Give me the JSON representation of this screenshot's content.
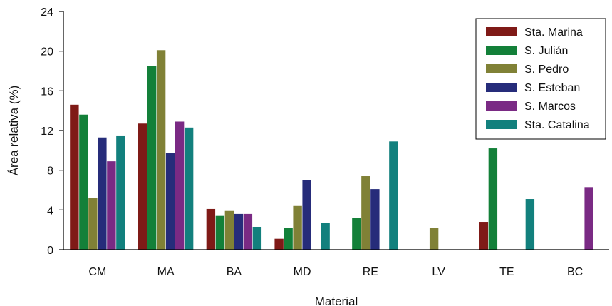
{
  "chart_data": {
    "type": "bar",
    "title": "",
    "xlabel": "Material",
    "ylabel": "Área relativa (%)",
    "ylim": [
      0,
      24
    ],
    "yticks": [
      "0",
      "4",
      "8",
      "12",
      "16",
      "20",
      "24"
    ],
    "categories": [
      "CM",
      "MA",
      "BA",
      "MD",
      "RE",
      "LV",
      "TE",
      "BC"
    ],
    "legend_position": "top-right",
    "series": [
      {
        "name": "Sta. Marina",
        "color": "#7f1a17",
        "values": [
          14.6,
          12.7,
          4.1,
          1.1,
          0,
          0,
          2.8,
          0
        ]
      },
      {
        "name": "S. Julián",
        "color": "#138039",
        "values": [
          13.6,
          18.5,
          3.4,
          2.2,
          3.2,
          0,
          10.2,
          0
        ]
      },
      {
        "name": "S. Pedro",
        "color": "#808136",
        "values": [
          5.2,
          20.1,
          3.9,
          4.4,
          7.4,
          2.2,
          0,
          0
        ]
      },
      {
        "name": "S. Esteban",
        "color": "#262c7a",
        "values": [
          11.3,
          9.7,
          3.6,
          7.0,
          6.1,
          0,
          0,
          0
        ]
      },
      {
        "name": "S. Marcos",
        "color": "#7a2a84",
        "values": [
          8.9,
          12.9,
          3.6,
          0,
          0,
          0,
          0,
          6.3
        ]
      },
      {
        "name": "Sta. Catalina",
        "color": "#12807d",
        "values": [
          11.5,
          12.3,
          2.3,
          2.7,
          10.9,
          0,
          5.1,
          0
        ]
      }
    ]
  }
}
